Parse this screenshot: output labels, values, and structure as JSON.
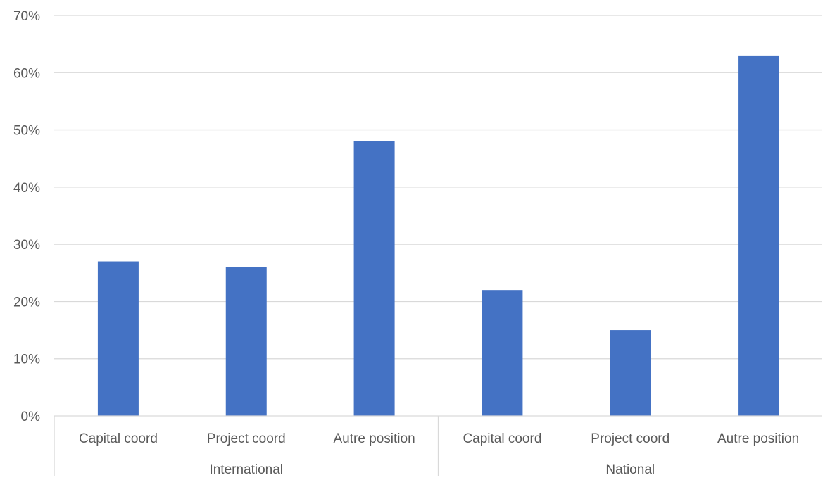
{
  "chart_data": {
    "type": "bar",
    "title": "",
    "xlabel": "",
    "ylabel": "",
    "groups": [
      {
        "label": "International",
        "categories": [
          "Capital coord",
          "Project coord",
          "Autre position"
        ]
      },
      {
        "label": "National",
        "categories": [
          "Capital coord",
          "Project coord",
          "Autre position"
        ]
      }
    ],
    "categories": [
      "Capital coord",
      "Project coord",
      "Autre position",
      "Capital coord",
      "Project coord",
      "Autre position"
    ],
    "values": [
      27,
      26,
      48,
      22,
      15,
      63
    ],
    "ylim": [
      0,
      70
    ],
    "yticks": [
      0,
      10,
      20,
      30,
      40,
      50,
      60,
      70
    ],
    "ytick_labels": [
      "0%",
      "10%",
      "20%",
      "30%",
      "40%",
      "50%",
      "60%",
      "70%"
    ],
    "grid": true,
    "legend": "none",
    "colors": {
      "bar": "#4472c4",
      "grid": "#d9d9d9",
      "text": "#595959"
    }
  }
}
